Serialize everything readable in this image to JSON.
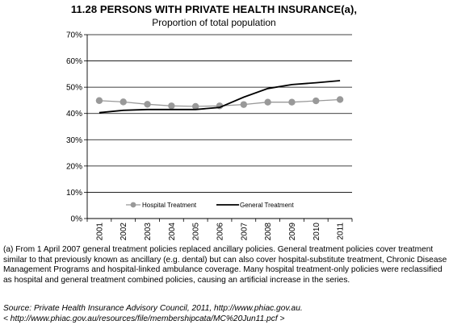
{
  "title": "11.28 PERSONS WITH PRIVATE HEALTH INSURANCE(a),",
  "subtitle": "Proportion of total population",
  "footnote": "(a) From 1 April 2007 general treatment policies replaced ancillary policies. General treatment policies cover treatment similar to that previously known as ancillary (e.g. dental) but can also cover hospital-substitute treatment, Chronic Disease Management Programs and hospital-linked ambulance coverage. Many hospital treatment-only policies were reclassified as hospital and general treatment combined policies, causing an artificial increase in the series.",
  "source_line1": "Source: Private Health Insurance Advisory Council, 2011, http://www.phiac.gov.au.",
  "source_line2": "< http://www.phiac.gov.au/resources/file/membershipcata/MC%20Jun11.pcf >",
  "chart_data": {
    "type": "line",
    "title": "11.28 PERSONS WITH PRIVATE HEALTH INSURANCE(a),",
    "subtitle": "Proportion of total population",
    "x": [
      "2001",
      "2002",
      "2003",
      "2004",
      "2005",
      "2006",
      "2007",
      "2008",
      "2009",
      "2010",
      "2011"
    ],
    "ylim": [
      0,
      70
    ],
    "yticks": [
      "0%",
      "10%",
      "20%",
      "30%",
      "40%",
      "50%",
      "60%",
      "70%"
    ],
    "grid": true,
    "legend": "bottom",
    "series": [
      {
        "name": "Hospital Treatment",
        "values": [
          44.9,
          44.4,
          43.5,
          42.9,
          42.7,
          42.9,
          43.4,
          44.3,
          44.3,
          44.8,
          45.3
        ],
        "color": "#999999",
        "marker": "circle"
      },
      {
        "name": "General Treatment",
        "values": [
          40.3,
          41.2,
          41.5,
          41.5,
          41.5,
          42.3,
          46.2,
          49.5,
          51.0,
          51.7,
          52.5
        ],
        "color": "#000000",
        "marker": "none"
      }
    ]
  }
}
